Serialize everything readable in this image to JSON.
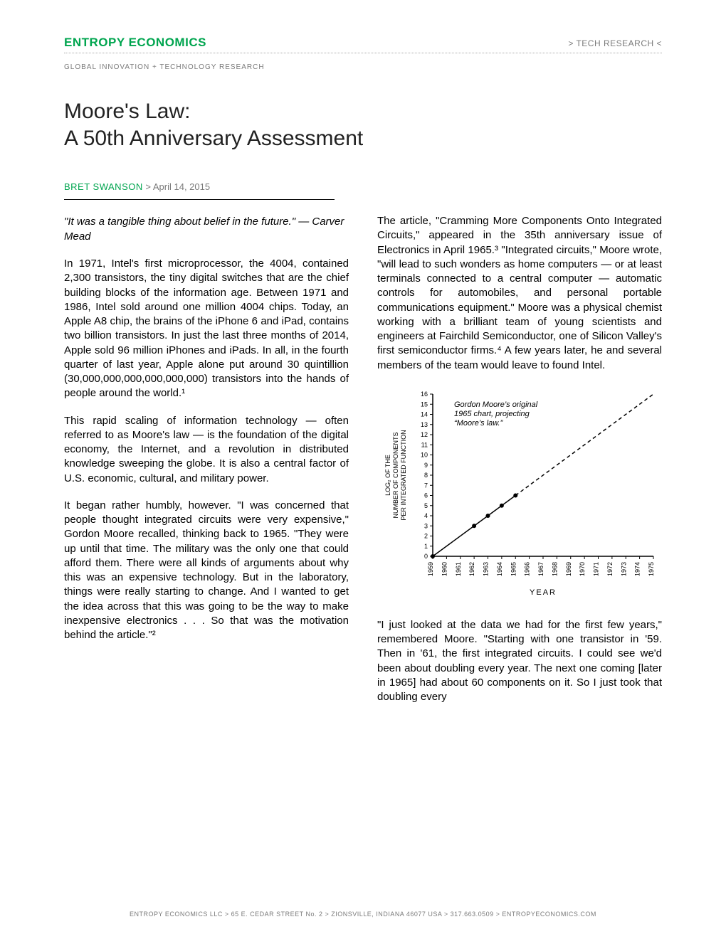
{
  "header": {
    "brand": "ENTROPY ECONOMICS",
    "section": "> TECH RESEARCH <",
    "subhead": "GLOBAL INNOVATION + TECHNOLOGY RESEARCH"
  },
  "article": {
    "title_line1": "Moore's Law:",
    "title_line2": "A 50th Anniversary Assessment",
    "author": "BRET SWANSON",
    "date_sep": " > ",
    "date": "April 14, 2015",
    "quote": "\"It was a tangible thing about belief in the future.\" — Carver Mead",
    "colA": {
      "p1": "In 1971, Intel's first microprocessor, the 4004, contained 2,300 transistors, the tiny digital switches that are the chief building blocks of the information age. Between 1971 and 1986, Intel sold around one million 4004 chips. Today, an Apple A8 chip, the brains of the iPhone 6 and iPad, contains two billion transistors. In just the last three months of 2014, Apple sold 96 million iPhones and iPads. In all, in the fourth quarter of last year, Apple alone put around 30 quintillion (30,000,000,000,000,000,000) transistors into the hands of people around the world.¹",
      "p2": "This rapid scaling of information technology — often referred to as Moore's law — is the foundation of the digital economy, the Internet, and a revolution in distributed knowledge sweeping the globe. It is also a central factor of U.S. economic, cultural, and military power.",
      "p3": "It began rather humbly, however. \"I was concerned that people thought integrated circuits were very expensive,\" Gordon Moore recalled, thinking back to 1965. \"They were up until that time. The military was the only one that could afford them. There were all kinds of arguments about why this was an expensive technology. But in the laboratory, things were really starting to change. And I wanted to get the idea across that this was going to be the way to make inexpensive electronics . . . So that was the motivation behind the article.\"²"
    },
    "colB": {
      "p1": "The article, \"Cramming More Components Onto Integrated Circuits,\" appeared in the 35th anniversary issue of Electronics in April 1965.³ \"Integrated circuits,\" Moore wrote, \"will lead to such wonders as home computers — or at least terminals connected to a central computer — automatic controls for automobiles, and personal portable communications equipment.\" Moore was a physical chemist working with a brilliant team of young scientists and engineers at Fairchild Semiconductor, one of Silicon Valley's first semiconductor firms.⁴ A few years later, he and several members of the team would leave to found Intel.",
      "p2": "\"I just looked at the data we had for the first few years,\" remembered Moore. \"Starting with one transistor in '59. Then in '61, the first integrated circuits. I could see we'd been about doubling every year. The next one coming [later in 1965] had about 60 components on it. So I just took that doubling every"
    }
  },
  "chart": {
    "type": "line",
    "caption": "Gordon Moore's original 1965 chart, projecting \"Moore's law.\"",
    "x_label": "YEAR",
    "y_label": "LOG₂ OF THE NUMBER OF COMPONENTS PER INTEGRATED FUNCTION",
    "x_ticks": [
      1959,
      1960,
      1961,
      1962,
      1963,
      1964,
      1965,
      1966,
      1967,
      1968,
      1969,
      1970,
      1971,
      1972,
      1973,
      1974,
      1975
    ],
    "y_ticks": [
      0,
      1,
      2,
      3,
      4,
      5,
      6,
      7,
      8,
      9,
      10,
      11,
      12,
      13,
      14,
      15,
      16
    ],
    "xlim": [
      1959,
      1975
    ],
    "ylim": [
      0,
      16
    ],
    "solid_points": [
      [
        1959,
        0
      ],
      [
        1962,
        3
      ],
      [
        1963,
        4
      ],
      [
        1964,
        5
      ],
      [
        1965,
        6
      ]
    ],
    "dashed_to": [
      1975,
      16
    ],
    "marker_style": "circle",
    "marker_radius": 3,
    "line_color": "#000000",
    "axis_color": "#000000",
    "background_color": "#ffffff",
    "tick_fontsize": 9,
    "label_fontsize": 9,
    "caption_fontsize": 11,
    "line_width": 1.5,
    "dash_pattern": "5,4"
  },
  "footer": {
    "text": "ENTROPY ECONOMICS LLC  >  65 E. CEDAR STREET No. 2  >  ZIONSVILLE, INDIANA 46077 USA  >  317.663.0509  >  ENTROPYECONOMICS.COM"
  },
  "colors": {
    "brand_green": "#00a54f",
    "muted_gray": "#7a7a7a",
    "text": "#000000"
  }
}
